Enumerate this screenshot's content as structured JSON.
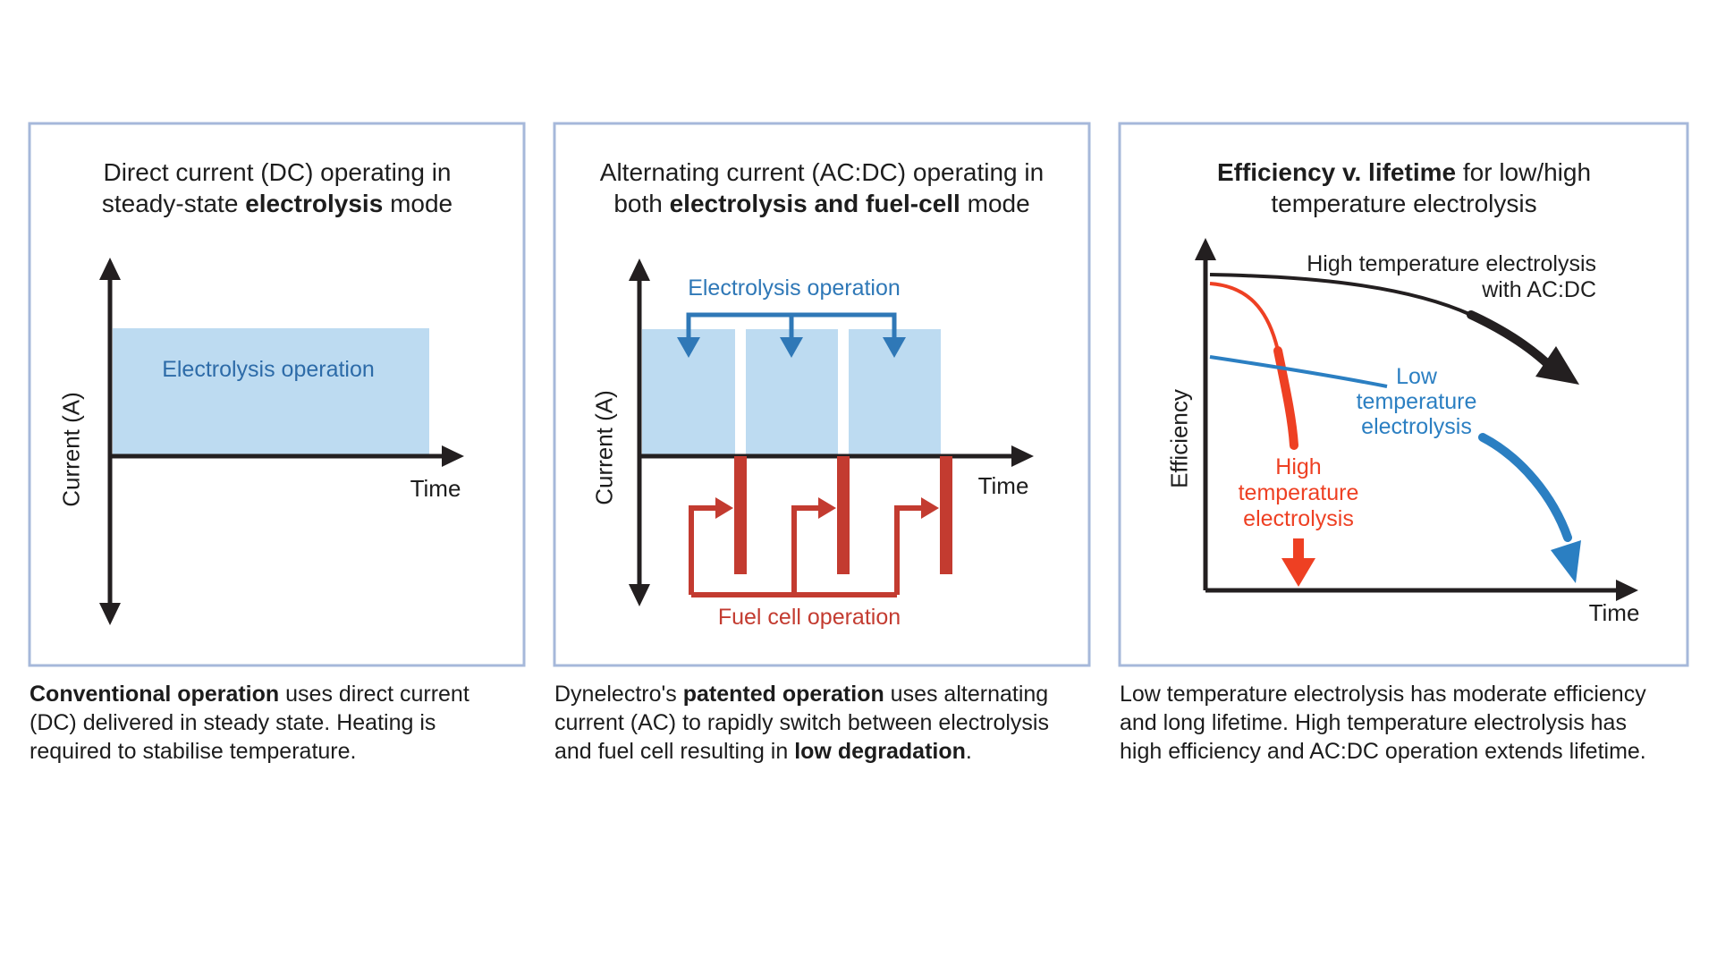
{
  "colors": {
    "panel_border": "#a6b8da",
    "light_blue_fill": "#bddbf1",
    "blue_accent": "#2f78b7",
    "blue_text": "#2d6ba8",
    "red_panel2": "#c33b30",
    "red_panel3": "#ee4023",
    "blue_panel3": "#2b7fc2",
    "axis_black": "#231f20"
  },
  "panel1": {
    "title": [
      [
        {
          "t": "Direct current (DC) operating in"
        }
      ],
      [
        {
          "t": "steady-state "
        },
        {
          "t": "electrolysis",
          "b": 1
        },
        {
          "t": " mode"
        }
      ]
    ],
    "block_label": "Electrolysis operation",
    "y_label": "Current (A)",
    "x_label": "Time",
    "caption": [
      [
        {
          "t": "Conventional operation",
          "b": 1
        },
        {
          "t": " uses direct current"
        }
      ],
      [
        {
          "t": "(DC) delivered in steady state. Heating is"
        }
      ],
      [
        {
          "t": "required to stabilise temperature."
        }
      ]
    ]
  },
  "panel2": {
    "title": [
      [
        {
          "t": "Alternating current (AC:DC) operating in"
        }
      ],
      [
        {
          "t": "both "
        },
        {
          "t": "electrolysis and fuel-cell",
          "b": 1
        },
        {
          "t": " mode"
        }
      ]
    ],
    "electrolysis_label": "Electrolysis operation",
    "fuel_cell_label": "Fuel cell operation",
    "y_label": "Current (A)",
    "x_label": "Time",
    "caption": [
      [
        {
          "t": "Dynelectro's "
        },
        {
          "t": "patented operation",
          "b": 1
        },
        {
          "t": " uses alternating"
        }
      ],
      [
        {
          "t": "current (AC) to rapidly switch between electrolysis"
        }
      ],
      [
        {
          "t": "and fuel cell resulting in "
        },
        {
          "t": "low degradation",
          "b": 1
        },
        {
          "t": "."
        }
      ]
    ]
  },
  "panel3": {
    "title": [
      [
        {
          "t": "Efficiency v. lifetime",
          "b": 1
        },
        {
          "t": " for low/high"
        }
      ],
      [
        {
          "t": "temperature electrolysis"
        }
      ]
    ],
    "black_label": [
      "High temperature electrolysis",
      "with AC:DC"
    ],
    "blue_label": [
      "Low",
      "temperature",
      "electrolysis"
    ],
    "red_label": [
      "High",
      "temperature",
      "electrolysis"
    ],
    "y_label": "Efficiency",
    "x_label": "Time",
    "caption": [
      [
        {
          "t": "Low temperature electrolysis has moderate efficiency"
        }
      ],
      [
        {
          "t": "and long lifetime. High temperature electrolysis has"
        }
      ],
      [
        {
          "t": "high efficiency and AC:DC operation extends lifetime."
        }
      ]
    ]
  },
  "chart_data": [
    {
      "type": "area",
      "panel": "direct-current",
      "title": "Direct current (DC) operating in steady-state electrolysis mode",
      "xlabel": "Time",
      "ylabel": "Current (A)",
      "series": [
        {
          "name": "Electrolysis operation",
          "shape": "single continuous positive block above time axis"
        }
      ],
      "axes_numeric": false
    },
    {
      "type": "bar",
      "panel": "alternating-current",
      "title": "Alternating current (AC:DC) operating in both electrolysis and fuel-cell mode",
      "xlabel": "Time",
      "ylabel": "Current (A)",
      "series": [
        {
          "name": "Electrolysis operation",
          "shape": "three positive blocks above time axis",
          "count": 3
        },
        {
          "name": "Fuel cell operation",
          "shape": "three narrow negative bars below time axis between blocks",
          "count": 3
        }
      ],
      "axes_numeric": false
    },
    {
      "type": "line",
      "panel": "efficiency-vs-lifetime",
      "title": "Efficiency v. lifetime for low/high temperature electrolysis",
      "xlabel": "Time",
      "ylabel": "Efficiency",
      "series": [
        {
          "name": "High temperature electrolysis with AC:DC",
          "color": "#231f20",
          "shape": "starts high, slow decline, long lifetime"
        },
        {
          "name": "High temperature electrolysis",
          "color": "#ee4023",
          "shape": "starts high, rapid steep decline to zero early"
        },
        {
          "name": "Low temperature electrolysis",
          "color": "#2b7fc2",
          "shape": "starts moderate, gradual decline then drop late"
        }
      ],
      "axes_numeric": false
    }
  ]
}
